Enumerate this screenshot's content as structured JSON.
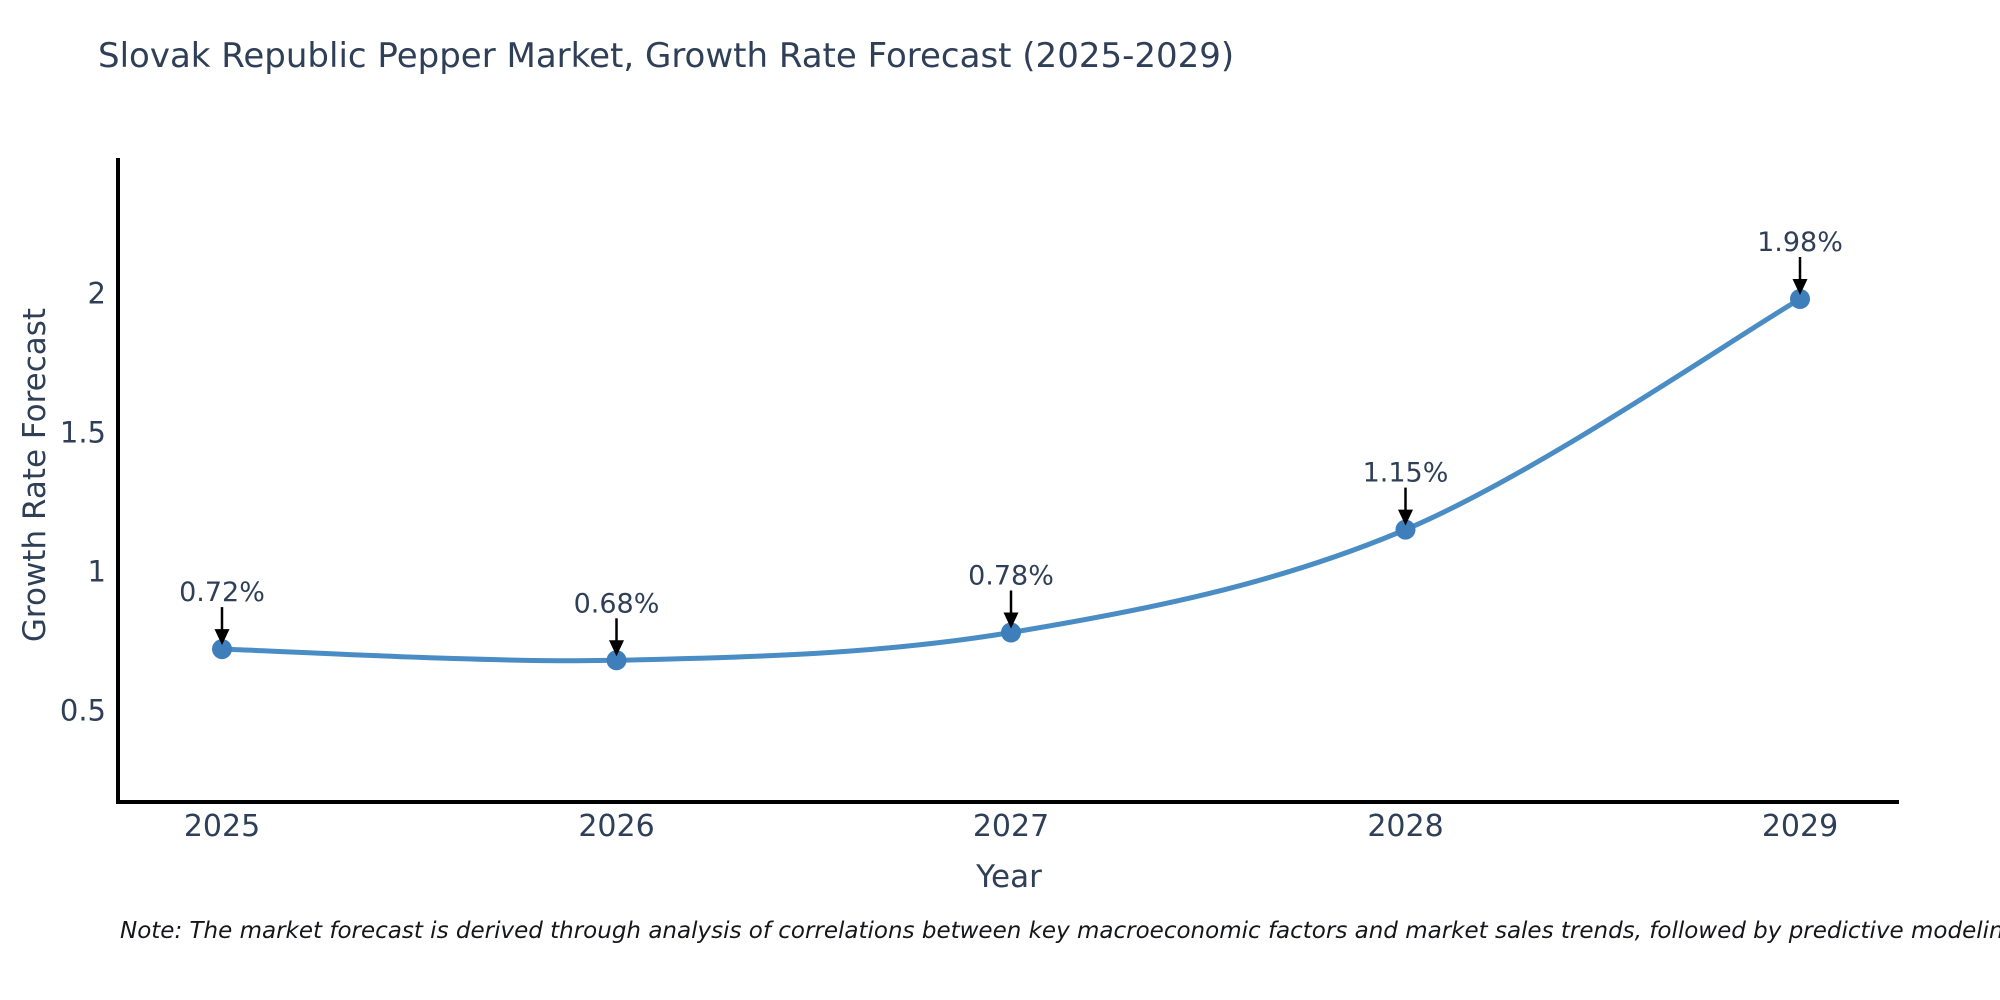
{
  "note": "Note: The market forecast is derived through analysis of correlations between key macroeconomic factors and market sales trends, followed by predictive modeling to project future sales",
  "chart_data": {
    "type": "line",
    "title": "Slovak Republic Pepper Market, Growth Rate Forecast (2025-2029)",
    "categories": [
      "2025",
      "2026",
      "2027",
      "2028",
      "2029"
    ],
    "values": [
      0.72,
      0.68,
      0.78,
      1.15,
      1.98
    ],
    "point_labels": [
      "0.72%",
      "0.68%",
      "0.78%",
      "1.15%",
      "1.98%"
    ],
    "xlabel": "Year",
    "ylabel": "Growth Rate Forecast",
    "yticks": [
      "0.5",
      "1",
      "1.5",
      "2"
    ],
    "ytick_values": [
      0.5,
      1,
      1.5,
      2
    ],
    "ylim": [
      0.17,
      2.48
    ],
    "line_shape": "spline",
    "grid": false,
    "legend": false,
    "colors": {
      "line": "#4a8cc4",
      "marker": "#3d7ebb",
      "axis": "#000000",
      "arrow": "#000000",
      "text": "#2e3f57",
      "note_text": "#15161a",
      "background": "#ffffff"
    }
  }
}
